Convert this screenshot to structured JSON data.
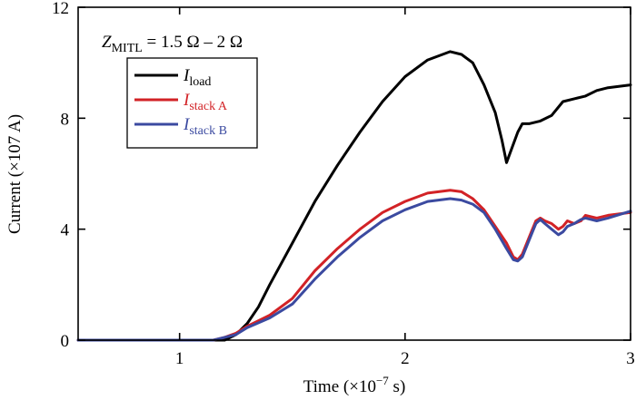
{
  "chart_data": {
    "type": "line",
    "xlabel": "Time (×10",
    "xlabel_exp": "−7",
    "xlabel_tail": " s)",
    "ylabel": "Current (×107 A)",
    "xlim": [
      0.55,
      3.0
    ],
    "ylim": [
      0,
      12
    ],
    "xticks": [
      1,
      2,
      3
    ],
    "xtick_labels": [
      "1",
      "2",
      "3"
    ],
    "yticks": [
      0,
      4,
      8,
      12
    ],
    "ytick_labels": [
      "0",
      "4",
      "8",
      "12"
    ],
    "grid": false,
    "legend_position": "top-left",
    "annotation": {
      "var": "Z",
      "sub": "MITL",
      "text": " = 1.5 Ω – 2 Ω"
    },
    "series": [
      {
        "name": "load",
        "label_main": "I",
        "label_sub": "load",
        "color": "#000000",
        "x": [
          0.55,
          1.0,
          1.2,
          1.25,
          1.3,
          1.35,
          1.4,
          1.5,
          1.6,
          1.7,
          1.8,
          1.9,
          2.0,
          2.1,
          2.2,
          2.25,
          2.3,
          2.35,
          2.4,
          2.43,
          2.45,
          2.5,
          2.52,
          2.55,
          2.6,
          2.65,
          2.7,
          2.75,
          2.8,
          2.85,
          2.9,
          3.0
        ],
        "y": [
          0,
          0,
          0,
          0.2,
          0.6,
          1.2,
          2.0,
          3.5,
          5.0,
          6.3,
          7.5,
          8.6,
          9.5,
          10.1,
          10.4,
          10.3,
          10.0,
          9.2,
          8.2,
          7.2,
          6.4,
          7.5,
          7.8,
          7.8,
          7.9,
          8.1,
          8.6,
          8.7,
          8.8,
          9.0,
          9.1,
          9.2
        ]
      },
      {
        "name": "stack A",
        "label_main": "I",
        "label_sub": "stack A",
        "color": "#d22226",
        "x": [
          0.55,
          1.0,
          1.15,
          1.2,
          1.25,
          1.3,
          1.4,
          1.5,
          1.6,
          1.7,
          1.8,
          1.9,
          2.0,
          2.1,
          2.2,
          2.25,
          2.3,
          2.35,
          2.4,
          2.45,
          2.48,
          2.5,
          2.52,
          2.55,
          2.58,
          2.6,
          2.62,
          2.65,
          2.68,
          2.7,
          2.72,
          2.75,
          2.78,
          2.8,
          2.85,
          2.9,
          3.0
        ],
        "y": [
          0,
          0,
          0,
          0.1,
          0.25,
          0.5,
          0.9,
          1.5,
          2.5,
          3.3,
          4.0,
          4.6,
          5.0,
          5.3,
          5.4,
          5.35,
          5.1,
          4.7,
          4.1,
          3.5,
          3.0,
          2.9,
          3.1,
          3.7,
          4.3,
          4.4,
          4.3,
          4.2,
          4.0,
          4.1,
          4.3,
          4.2,
          4.3,
          4.5,
          4.4,
          4.5,
          4.6
        ]
      },
      {
        "name": "stack B",
        "label_main": "I",
        "label_sub": "stack B",
        "color": "#3b4aa0",
        "x": [
          0.55,
          1.0,
          1.15,
          1.2,
          1.25,
          1.3,
          1.4,
          1.5,
          1.6,
          1.7,
          1.8,
          1.9,
          2.0,
          2.1,
          2.2,
          2.25,
          2.3,
          2.35,
          2.4,
          2.45,
          2.48,
          2.5,
          2.52,
          2.55,
          2.58,
          2.6,
          2.62,
          2.65,
          2.68,
          2.7,
          2.72,
          2.75,
          2.78,
          2.8,
          2.85,
          2.9,
          3.0
        ],
        "y": [
          0,
          0,
          0,
          0.1,
          0.2,
          0.45,
          0.8,
          1.3,
          2.2,
          3.0,
          3.7,
          4.3,
          4.7,
          5.0,
          5.1,
          5.05,
          4.9,
          4.6,
          4.0,
          3.3,
          2.9,
          2.85,
          3.0,
          3.6,
          4.2,
          4.35,
          4.2,
          4.0,
          3.8,
          3.9,
          4.1,
          4.2,
          4.35,
          4.4,
          4.3,
          4.4,
          4.65
        ]
      }
    ]
  }
}
